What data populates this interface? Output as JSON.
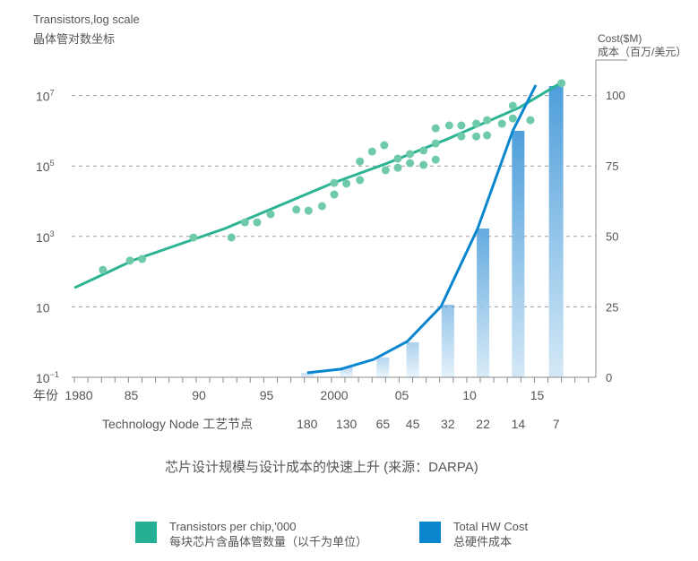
{
  "chart_data": {
    "type": "bar+line+scatter",
    "title": "芯片设计规模与设计成本的快速上升 (来源：DARPA)",
    "left_axis": {
      "label_en": "Transistors,log scale",
      "label_zh": "晶体管对数坐标",
      "scale": "log",
      "ticks": [
        {
          "base": "10",
          "exp": "7",
          "v": 7
        },
        {
          "base": "10",
          "exp": "5",
          "v": 5
        },
        {
          "base": "10",
          "exp": "3",
          "v": 3
        },
        {
          "base": "10",
          "exp": "",
          "v": 1
        },
        {
          "base": "10",
          "exp": "−1",
          "v": -1
        }
      ],
      "range_log10": [
        -1,
        7
      ]
    },
    "right_axis": {
      "label_en": "Cost($M)",
      "label_zh": "成本（百万/美元）",
      "ticks": [
        "0",
        "25",
        "50",
        "75",
        "100"
      ],
      "range": [
        0,
        100
      ]
    },
    "x_axis": {
      "prefix": "年份",
      "ticks": [
        {
          "label": "1980",
          "year": 1980
        },
        {
          "label": "85",
          "year": 1985
        },
        {
          "label": "90",
          "year": 1990
        },
        {
          "label": "95",
          "year": 1995
        },
        {
          "label": "2000",
          "year": 2000
        },
        {
          "label": "05",
          "year": 2005
        },
        {
          "label": "10",
          "year": 2010
        },
        {
          "label": "15",
          "year": 2015
        }
      ]
    },
    "node_axis_label": "Technology Node 工艺节点",
    "bars": [
      {
        "node": "180",
        "year": 1998.0,
        "cost": 1.5
      },
      {
        "node": "130",
        "year": 2000.9,
        "cost": 3.5
      },
      {
        "node": "65",
        "year": 2003.6,
        "cost": 7
      },
      {
        "node": "45",
        "year": 2005.8,
        "cost": 12.4
      },
      {
        "node": "32",
        "year": 2008.4,
        "cost": 25.7
      },
      {
        "node": "22",
        "year": 2011.0,
        "cost": 52.7
      },
      {
        "node": "14",
        "year": 2013.6,
        "cost": 87.3
      },
      {
        "node": "7",
        "year": 2016.4,
        "cost": 103.2
      }
    ],
    "cost_line": [
      [
        1998.0,
        1.6
      ],
      [
        2000.5,
        2.9
      ],
      [
        2002.9,
        6.3
      ],
      [
        2005.4,
        12.7
      ],
      [
        2007.9,
        25.1
      ],
      [
        2010.6,
        52.7
      ],
      [
        2013.2,
        87.3
      ],
      [
        2014.9,
        103.5
      ]
    ],
    "transistor_trend_log10": [
      [
        1980.8,
        1.54
      ],
      [
        1985.2,
        2.33
      ],
      [
        1991.9,
        3.22
      ],
      [
        1999.8,
        4.5
      ],
      [
        2003.8,
        5.06
      ],
      [
        2008.4,
        5.77
      ],
      [
        2013.7,
        6.66
      ],
      [
        2016.8,
        7.37
      ]
    ],
    "transistor_points_log10": [
      [
        1982.9,
        2.05
      ],
      [
        1984.9,
        2.31
      ],
      [
        1985.8,
        2.36
      ],
      [
        1989.6,
        2.97
      ],
      [
        1992.4,
        2.97
      ],
      [
        1993.4,
        3.4
      ],
      [
        1994.3,
        3.4
      ],
      [
        1995.3,
        3.63
      ],
      [
        1997.2,
        3.76
      ],
      [
        1998.1,
        3.73
      ],
      [
        1999.1,
        3.86
      ],
      [
        2000.0,
        4.19
      ],
      [
        2000.0,
        4.52
      ],
      [
        2000.9,
        4.5
      ],
      [
        2001.9,
        4.6
      ],
      [
        2001.9,
        5.13
      ],
      [
        2002.8,
        5.41
      ],
      [
        2003.7,
        5.59
      ],
      [
        2003.8,
        4.88
      ],
      [
        2004.7,
        5.21
      ],
      [
        2004.7,
        4.95
      ],
      [
        2005.6,
        5.34
      ],
      [
        2005.6,
        5.08
      ],
      [
        2006.6,
        5.44
      ],
      [
        2006.6,
        5.03
      ],
      [
        2007.5,
        5.18
      ],
      [
        2007.5,
        5.64
      ],
      [
        2007.5,
        6.07
      ],
      [
        2008.5,
        6.15
      ],
      [
        2009.4,
        6.15
      ],
      [
        2009.4,
        5.84
      ],
      [
        2010.5,
        6.2
      ],
      [
        2010.5,
        5.84
      ],
      [
        2011.3,
        6.3
      ],
      [
        2011.3,
        5.87
      ],
      [
        2012.4,
        6.2
      ],
      [
        2013.2,
        6.35
      ],
      [
        2013.2,
        6.71
      ],
      [
        2014.5,
        6.3
      ],
      [
        2016.8,
        7.35
      ]
    ],
    "legend": [
      {
        "en": "Transistors per chip,'000",
        "zh": "每块芯片含晶体管数量（以千为单位）",
        "color": "#25b096"
      },
      {
        "en": "Total HW Cost",
        "zh": "总硬件成本",
        "color": "#0a86cf"
      }
    ]
  },
  "colors": {
    "trend": "#2bb394",
    "dots": "#6ecaa8",
    "cost_line": "#0a86cf",
    "bar_top": "#4f9fdb",
    "bar_bottom": "#d3e8f6"
  }
}
